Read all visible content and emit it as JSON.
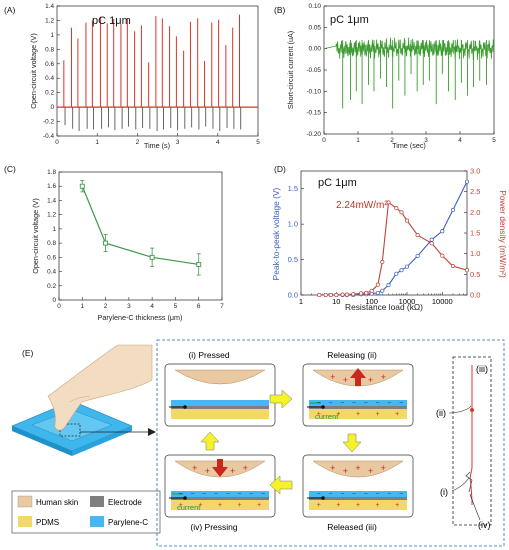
{
  "chart_data": [
    {
      "id": "A",
      "type": "line",
      "panel_label": "(A)",
      "annotation": "pC 1μm",
      "xlabel": "Time (s)",
      "ylabel": "Open-circuit voltage (V)",
      "xlim": [
        0,
        5
      ],
      "ylim": [
        -0.4,
        1.4
      ],
      "xticks": [
        0,
        1,
        2,
        3,
        4,
        5
      ],
      "yticks": [
        -0.4,
        -0.2,
        0,
        0.2,
        0.4,
        0.6,
        0.8,
        1,
        1.2,
        1.4
      ],
      "yticklabels": [
        "-0.4",
        "-0.2",
        "0",
        "0.2",
        "0.4",
        "0.6",
        "0.8",
        "1",
        "1.2",
        "1.4"
      ],
      "color": "#d9342b",
      "series": [
        {
          "peak_times": [
            0.17,
            0.36,
            0.52,
            0.72,
            0.88,
            1.08,
            1.25,
            1.41,
            1.59,
            1.75,
            1.93,
            2.1,
            2.28,
            2.46,
            2.62,
            2.8,
            2.97,
            3.15,
            3.32,
            3.5,
            3.67,
            3.85,
            4.02,
            4.2,
            4.37,
            4.54
          ],
          "peak_values": [
            0.65,
            1.1,
            0.95,
            1.17,
            1.2,
            1.25,
            1.16,
            1.22,
            1.15,
            1.23,
            1.05,
            1.13,
            0.62,
            1.26,
            1.23,
            1.12,
            0.98,
            0.78,
            1.18,
            1.23,
            0.64,
            1.17,
            1.21,
            0.86,
            1.1,
            1.28
          ],
          "trough_values": [
            -0.25,
            -0.3,
            -0.33,
            -0.3,
            -0.31,
            -0.3,
            -0.28,
            -0.32,
            -0.3,
            -0.27,
            -0.31,
            -0.29,
            -0.3,
            -0.33,
            -0.31,
            -0.29,
            -0.32,
            -0.3,
            -0.28,
            -0.31,
            -0.27,
            -0.3,
            -0.33,
            -0.29,
            -0.3,
            -0.31
          ]
        }
      ]
    },
    {
      "id": "B",
      "type": "line",
      "panel_label": "(B)",
      "annotation": "pC 1μm",
      "xlabel": "Time (sec)",
      "ylabel": "Short-circuit current (uA)",
      "xlim": [
        0,
        5
      ],
      "ylim": [
        -0.2,
        0.1
      ],
      "xticks": [
        0,
        1,
        2,
        3,
        4,
        5
      ],
      "yticks": [
        -0.2,
        -0.15,
        -0.1,
        -0.05,
        0,
        0.05,
        0.1
      ],
      "yticklabels": [
        "-0.20",
        "-0.15",
        "-0.10",
        "-0.05",
        "0.00",
        "0.05",
        "0.10"
      ],
      "color": "#3a9b2e",
      "series": [
        {
          "spike_times": [
            0.55,
            0.78,
            0.95,
            1.12,
            1.31,
            1.47,
            1.66,
            1.84,
            2.02,
            2.2,
            2.38,
            2.56,
            2.74,
            2.92,
            3.1,
            3.3,
            3.48,
            3.66,
            3.86,
            4.04,
            4.22,
            4.4,
            4.58,
            4.78
          ],
          "spike_values": [
            -0.14,
            -0.12,
            -0.1,
            -0.13,
            -0.085,
            -0.1,
            -0.07,
            -0.09,
            -0.14,
            -0.075,
            -0.11,
            -0.06,
            -0.1,
            -0.085,
            -0.075,
            -0.13,
            -0.06,
            -0.1,
            -0.12,
            -0.08,
            -0.11,
            -0.09,
            -0.075,
            -0.085
          ]
        }
      ]
    },
    {
      "id": "C",
      "type": "line",
      "panel_label": "(C)",
      "xlabel": "Parylene-C thickness (μm)",
      "ylabel": "Open-circuit voltage (V)",
      "xlim": [
        0,
        7
      ],
      "ylim": [
        0,
        1.8
      ],
      "xticks": [
        0,
        1,
        2,
        3,
        4,
        5,
        6,
        7
      ],
      "yticks": [
        0,
        0.2,
        0.4,
        0.6,
        0.8,
        1,
        1.2,
        1.4,
        1.6,
        1.8
      ],
      "yticklabels": [
        "0",
        "0.2",
        "0.4",
        "0.6",
        "0.8",
        "1",
        "1.2",
        "1.4",
        "1.6",
        "1.8"
      ],
      "color": "#3d9a4a",
      "series": [
        {
          "x": [
            1,
            2,
            4,
            6
          ],
          "y": [
            1.6,
            0.8,
            0.6,
            0.5
          ],
          "err": [
            0.08,
            0.12,
            0.13,
            0.15
          ]
        }
      ]
    },
    {
      "id": "D",
      "type": "line",
      "panel_label": "(D)",
      "annotation": "pC 1μm",
      "peak_annotation": "2.24mW/m²",
      "xlabel": "Resistance load (kΩ)",
      "ylabel": "Peak-to-peak voltage (V)",
      "ylabel_right": "Power density (mW/m²)",
      "xscale": "log",
      "xlim": [
        1,
        50000
      ],
      "ylim": [
        0,
        1.75
      ],
      "ylim_right": [
        0,
        3.0
      ],
      "xticks": [
        1,
        10,
        100,
        1000,
        10000
      ],
      "xticklabels": [
        "1",
        "10",
        "100",
        "1000",
        "10000"
      ],
      "yticks": [
        0,
        0.5,
        1,
        1.5
      ],
      "yticklabels": [
        "0.0",
        "0.5",
        "1.0",
        "1.5"
      ],
      "yticks_right": [
        0,
        0.5,
        1,
        1.5,
        2,
        2.5,
        3
      ],
      "yticklabels_right": [
        "0.0",
        "0.5",
        "1.0",
        "1.5",
        "2.0",
        "2.5",
        "3.0"
      ],
      "series": [
        {
          "axis": "left",
          "color": "#3b5fc0",
          "x": [
            3.3,
            5,
            7,
            10,
            15,
            20,
            30,
            50,
            70,
            100,
            150,
            200,
            300,
            500,
            700,
            1000,
            2000,
            5000,
            10000,
            20000,
            50000
          ],
          "y": [
            0.0,
            0.0,
            0.0,
            0.0,
            0.0,
            0.0,
            0.0,
            0.01,
            0.01,
            0.02,
            0.03,
            0.06,
            0.14,
            0.3,
            0.35,
            0.4,
            0.55,
            0.78,
            0.9,
            1.2,
            1.6
          ]
        },
        {
          "axis": "right",
          "color": "#c0453a",
          "x": [
            3.3,
            5,
            7,
            10,
            15,
            20,
            30,
            50,
            70,
            100,
            150,
            200,
            300,
            500,
            700,
            1000,
            2000,
            5000,
            10000,
            20000,
            50000
          ],
          "y": [
            0.0,
            0.0,
            0.0,
            0.0,
            0.01,
            0.01,
            0.02,
            0.04,
            0.05,
            0.1,
            0.25,
            0.8,
            2.24,
            2.1,
            2.0,
            1.8,
            1.45,
            1.25,
            0.95,
            0.7,
            0.6
          ]
        }
      ]
    }
  ],
  "panel_e": {
    "label": "(E)",
    "legend": {
      "human_skin": "Human skin",
      "electrode": "Electrode",
      "pdms": "PDMS",
      "parylene": "Parylene-C"
    },
    "states": {
      "pressed": "(i) Pressed",
      "releasing": "Releasing (ii)",
      "released": "Released (iii)",
      "pressing": "(iv) Pressing"
    },
    "current_label": "current",
    "marker_i": "(i)",
    "marker_ii": "(ii)",
    "marker_iii": "(iii)",
    "marker_iv": "(iv)",
    "colors": {
      "skin": "#e9c9a2",
      "electrode": "#7f7f82",
      "pdms": "#f2d76a",
      "parylene": "#45b8f2",
      "arrow_red": "#c8281e",
      "arrow_yellow": "#f6f22a",
      "dash_blue": "#2f66b3",
      "current_green": "#1e9b3a"
    }
  }
}
